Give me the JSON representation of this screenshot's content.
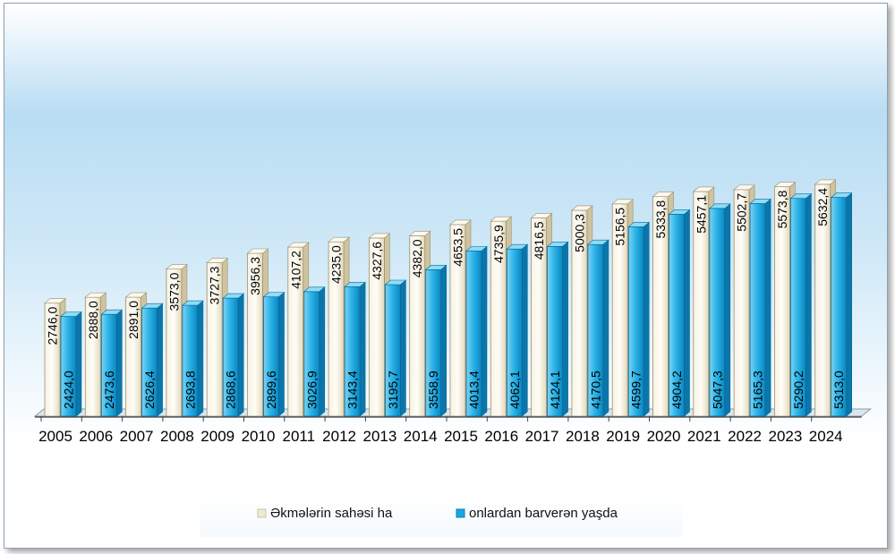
{
  "chart_data": {
    "type": "bar",
    "categories": [
      "2005",
      "2006",
      "2007",
      "2008",
      "2009",
      "2010",
      "2011",
      "2012",
      "2013",
      "2014",
      "2015",
      "2016",
      "2017",
      "2018",
      "2019",
      "2020",
      "2021",
      "2022",
      "2023",
      "2024"
    ],
    "series": [
      {
        "name": "Əkmələrin sahəsi ha",
        "color": "#efe8d2",
        "values": [
          2746.0,
          2888.0,
          2891.0,
          3573.0,
          3727.3,
          3956.3,
          4107.2,
          4235.0,
          4327.6,
          4382.0,
          4653.5,
          4735.9,
          4816.5,
          5000.3,
          5156.5,
          5333.8,
          5457.1,
          5502.7,
          5573.8,
          5632.4
        ],
        "labels": [
          "2746,0",
          "2888,0",
          "2891,0",
          "3573,0",
          "3727,3",
          "3956,3",
          "4107,2",
          "4235,0",
          "4327,6",
          "4382,0",
          "4653,5",
          "4735,9",
          "4816,5",
          "5000,3",
          "5156,5",
          "5333,8",
          "5457,1",
          "5502,7",
          "5573,8",
          "5632,4"
        ]
      },
      {
        "name": "onlardan barverən yaşda",
        "color": "#1aa7e0",
        "values": [
          2424.0,
          2473.6,
          2626.4,
          2693.8,
          2868.6,
          2899.6,
          3026.9,
          3143.4,
          3195.7,
          3558.9,
          4013.4,
          4062.1,
          4124.1,
          4170.5,
          4599.7,
          4904.2,
          5047.3,
          5165.3,
          5290.2,
          5313.0
        ],
        "labels": [
          "2424,0",
          "2473,6",
          "2626,4",
          "2693,8",
          "2868,6",
          "2899,6",
          "3026,9",
          "3143,4",
          "3195,7",
          "3558,9",
          "4013,4",
          "4062,1",
          "4124,1",
          "4170,5",
          "4599,7",
          "4904,2",
          "5047,3",
          "5165,3",
          "5290,2",
          "5313,0"
        ]
      }
    ],
    "ylim": [
      0,
      6000
    ],
    "title": "",
    "xlabel": "",
    "ylabel": "",
    "legend_position": "bottom"
  }
}
